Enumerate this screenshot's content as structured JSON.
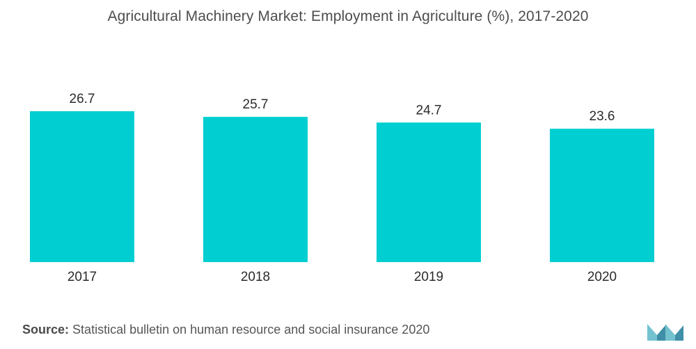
{
  "chart_data": {
    "type": "bar",
    "title": "Agricultural Machinery Market: Employment in Agriculture (%), 2017-2020",
    "categories": [
      "2017",
      "2018",
      "2019",
      "2020"
    ],
    "values": [
      26.7,
      25.7,
      24.7,
      23.6
    ],
    "value_labels": [
      "26.7",
      "25.7",
      "24.7",
      "23.6"
    ],
    "xlabel": "",
    "ylabel": "",
    "ylim": [
      0,
      26.7
    ],
    "grid": false,
    "bar_color": "#00CED1"
  },
  "source": {
    "label": "Source:",
    "text": "Statistical bulletin on human resource and social insurance 2020"
  },
  "logo": {
    "icon": "mordor-intelligence-logo-icon",
    "color": "#5fb6c7"
  }
}
